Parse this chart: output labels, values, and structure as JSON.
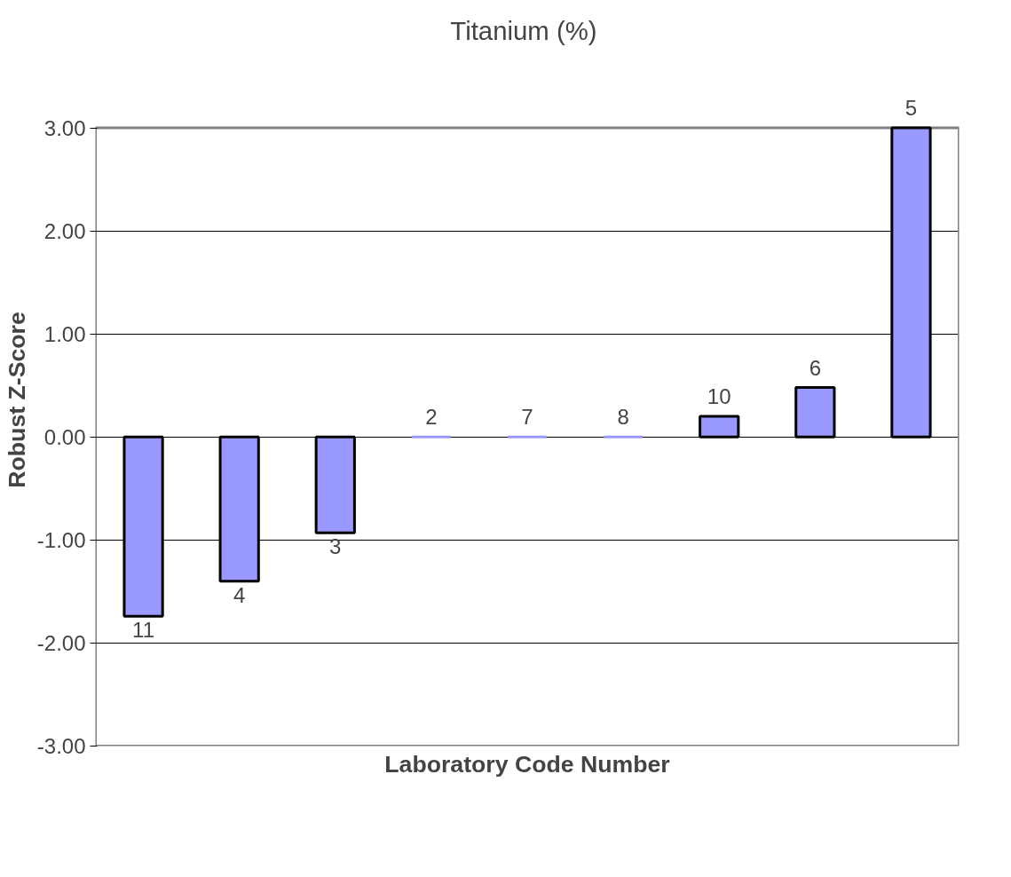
{
  "chart_data": {
    "type": "bar",
    "title": "Titanium  (%)",
    "xlabel": "Laboratory Code Number",
    "ylabel": "Robust Z-Score",
    "categories": [
      "11",
      "4",
      "3",
      "2",
      "7",
      "8",
      "10",
      "6",
      "5"
    ],
    "values": [
      -1.74,
      -1.4,
      -0.93,
      0,
      0,
      0,
      0.2,
      0.48,
      3.0
    ],
    "color": "#9999ff",
    "ylim": [
      -3,
      3
    ],
    "yticks": [
      {
        "value": -3,
        "label": "-3.00"
      },
      {
        "value": -2,
        "label": "-2.00"
      },
      {
        "value": -1,
        "label": "-1.00"
      },
      {
        "value": 0,
        "label": "0.00"
      },
      {
        "value": 1,
        "label": "1.00"
      },
      {
        "value": 2,
        "label": "2.00"
      },
      {
        "value": 3,
        "label": "3.00"
      }
    ],
    "grid": "y"
  }
}
